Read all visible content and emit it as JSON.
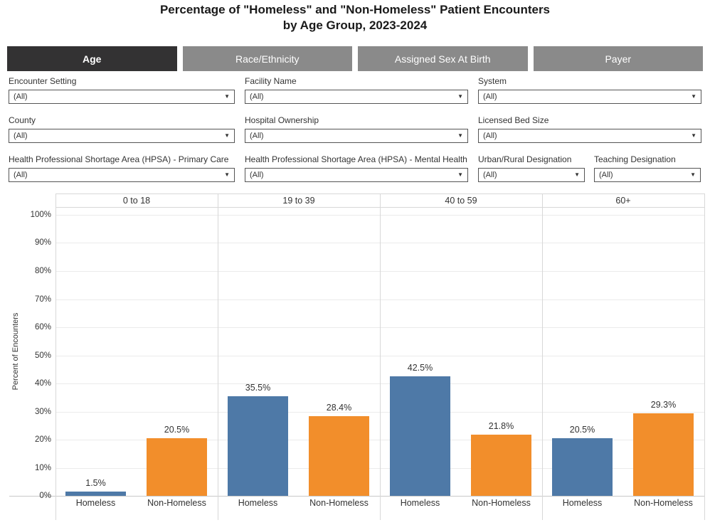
{
  "title": {
    "line1": "Percentage of \"Homeless\" and \"Non-Homeless\" Patient Encounters",
    "line2": "by Age Group, 2023-2024"
  },
  "tabs": [
    {
      "label": "Age",
      "active": true
    },
    {
      "label": "Race/Ethnicity",
      "active": false
    },
    {
      "label": "Assigned Sex At Birth",
      "active": false
    },
    {
      "label": "Payer",
      "active": false
    }
  ],
  "filters": [
    {
      "label": "Encounter Setting",
      "value": "(All)"
    },
    {
      "label": "Facility Name",
      "value": "(All)"
    },
    {
      "label": "System",
      "value": "(All)"
    },
    {
      "label": "County",
      "value": "(All)"
    },
    {
      "label": "Hospital Ownership",
      "value": "(All)"
    },
    {
      "label": "Licensed Bed Size",
      "value": "(All)"
    },
    {
      "label": "Health Professional Shortage Area (HPSA) - Primary Care",
      "value": "(All)"
    },
    {
      "label": "Health Professional Shortage Area (HPSA) - Mental Health",
      "value": "(All)"
    },
    {
      "label": "Urban/Rural Designation",
      "value": "(All)"
    },
    {
      "label": "Teaching Designation",
      "value": "(All)"
    }
  ],
  "icons": {
    "dropdown_caret": "dropdown-caret-icon"
  },
  "colors": {
    "homeless": "#4e79a7",
    "non_homeless": "#f28e2b",
    "tab_active_bg": "#333233",
    "tab_inactive_bg": "#8a8a8a",
    "text": "#333333"
  },
  "chart_data": {
    "type": "bar",
    "title": "Percentage of \"Homeless\" and \"Non-Homeless\" Patient Encounters by Age Group, 2023-2024",
    "ylabel": "Percent of Encounters",
    "xlabel": "",
    "ylim": [
      0,
      100
    ],
    "ytick_step": 10,
    "ytick_labels": [
      "0%",
      "10%",
      "20%",
      "30%",
      "40%",
      "50%",
      "60%",
      "70%",
      "80%",
      "90%",
      "100%"
    ],
    "grid": true,
    "legend": "none",
    "panels": [
      "0 to 18",
      "19 to 39",
      "40 to 59",
      "60+"
    ],
    "categories": [
      "Homeless",
      "Non-Homeless"
    ],
    "series_colors": {
      "Homeless": "#4e79a7",
      "Non-Homeless": "#f28e2b"
    },
    "values": [
      [
        1.5,
        20.5
      ],
      [
        35.5,
        28.4
      ],
      [
        42.5,
        21.8
      ],
      [
        20.5,
        29.3
      ]
    ],
    "bar_labels": [
      [
        "1.5%",
        "20.5%"
      ],
      [
        "35.5%",
        "28.4%"
      ],
      [
        "42.5%",
        "21.8%"
      ],
      [
        "20.5%",
        "29.3%"
      ]
    ]
  }
}
